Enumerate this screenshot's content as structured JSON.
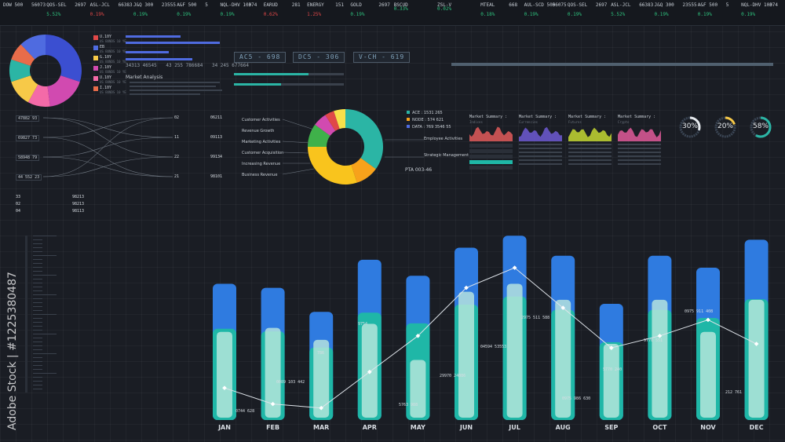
{
  "ticker": [
    {
      "name": "DOW 500",
      "a": "56073",
      "b": "59",
      "value": "",
      "dir": "up"
    },
    {
      "name": "QOS-SEL",
      "a": "2697",
      "b": "42",
      "value": "5.52%",
      "dir": "up"
    },
    {
      "name": "ASL-JCL",
      "a": "66383",
      "b": "369",
      "value": "0.19%",
      "dir": "dn"
    },
    {
      "name": "J&Q 300",
      "a": "23555",
      "b": "63",
      "value": "0.19%",
      "dir": "up"
    },
    {
      "name": "A&F 500",
      "a": "5",
      "b": "439",
      "value": "0.19%",
      "dir": "up"
    },
    {
      "name": "NQL-DHV 100",
      "a": "374",
      "b": "67",
      "value": "0.19%",
      "dir": "up"
    },
    {
      "name": "EARUD",
      "a": "281",
      "b": "9442",
      "value": "0.62%",
      "dir": "dn"
    },
    {
      "name": "ENERGY",
      "a": "151",
      "b": "645485",
      "value": "1.25%",
      "dir": "dn"
    },
    {
      "name": "GOLD",
      "a": "2697",
      "b": "42",
      "value": "0.19%",
      "dir": "up"
    },
    {
      "name": "BSCUD",
      "a": "",
      "b": "",
      "value": "0.33%",
      "dir": "up"
    },
    {
      "name": "ZSL-V",
      "a": "",
      "b": "",
      "value": "0.02%",
      "dir": "up"
    },
    {
      "name": "MTEAL",
      "a": "668",
      "b": "442",
      "value": "0.18%",
      "dir": "up"
    },
    {
      "name": "AUL-SCD 500",
      "a": "56075",
      "b": "59",
      "value": "0.19%",
      "dir": "up"
    },
    {
      "name": "QOS-SEL",
      "a": "2697",
      "b": "42",
      "value": "0.19%",
      "dir": "up"
    },
    {
      "name": "ASL-JCL",
      "a": "66383",
      "b": "369",
      "value": "5.52%",
      "dir": "up"
    },
    {
      "name": "J&Q 300",
      "a": "23555",
      "b": "63",
      "value": "0.19%",
      "dir": "up"
    },
    {
      "name": "A&F 500",
      "a": "5",
      "b": "439",
      "value": "0.19%",
      "dir": "up"
    },
    {
      "name": "NQL-DHV 100",
      "a": "374",
      "b": "67",
      "value": "0.19%",
      "dir": "up"
    }
  ],
  "donut_small": {
    "slices": [
      {
        "value": 30,
        "color": "#3b4fd1"
      },
      {
        "value": 18,
        "color": "#d14ab0"
      },
      {
        "value": 10,
        "color": "#f46aa8"
      },
      {
        "value": 12,
        "color": "#f7c948"
      },
      {
        "value": 10,
        "color": "#2bb5a5"
      },
      {
        "value": 8,
        "color": "#e86c4a"
      },
      {
        "value": 12,
        "color": "#4f6be0"
      }
    ],
    "legend": [
      {
        "label": "U.10Y",
        "sub": "US BONDS 10 YE",
        "color": "#e04848"
      },
      {
        "label": "EB",
        "sub": "US BONDS 10 YE",
        "color": "#4f6be0"
      },
      {
        "label": "G.10Y",
        "sub": "US BONDS 10 YE",
        "color": "#f7c948"
      },
      {
        "label": "J.10Y",
        "sub": "US BONDS 10 YE",
        "color": "#d14ab0"
      },
      {
        "label": "U.10Y",
        "sub": "US BONDS 10 YE",
        "color": "#f46aa8"
      },
      {
        "label": "I.10Y",
        "sub": "US BONDS 10 YE",
        "color": "#e86c4a"
      }
    ]
  },
  "market_analysis": {
    "title": "Market Analysis",
    "stats": [
      "34313 46545",
      "43 255 786684",
      "34 245 677664"
    ]
  },
  "tabs": [
    "AC5 - 698",
    "DC5 - 306",
    "V-CH - 619"
  ],
  "flow_left": [
    "47882 93",
    "69827 73",
    "58948 79",
    "44 552 23"
  ],
  "flow_right": [
    {
      "idx": "02",
      "code": "06211"
    },
    {
      "idx": "11",
      "code": "09113"
    },
    {
      "idx": "22",
      "code": "99134"
    },
    {
      "idx": "21",
      "code": "98101"
    }
  ],
  "stats_left": [
    [
      "33",
      "98213"
    ],
    [
      "02",
      "98213"
    ],
    [
      "04",
      "98113"
    ]
  ],
  "donut_main": {
    "labels_left": [
      "Customer Activities",
      "Revenue Growth",
      "Marketing Activities",
      "Customer Acquisition",
      "Increasing Revenue",
      "Business Revenue"
    ],
    "legend": [
      {
        "label": "ACE : 1531 265",
        "color": "#2bb5a5"
      },
      {
        "label": "NODE : 574 621",
        "color": "#f7a21b"
      },
      {
        "label": "DATA : 769 3546 55",
        "color": "#4f6be0"
      }
    ],
    "labels_right": [
      "Employee Activities",
      "Strategic Management"
    ],
    "footer": "PTA 003-46",
    "slices": [
      {
        "value": 35,
        "color": "#2bb5a5"
      },
      {
        "value": 10,
        "color": "#f7a21b"
      },
      {
        "value": 30,
        "color": "#f9c41d"
      },
      {
        "value": 10,
        "color": "#3fb14a"
      },
      {
        "value": 6,
        "color": "#d14ab0"
      },
      {
        "value": 4,
        "color": "#e04848"
      },
      {
        "value": 5,
        "color": "#f7e04a"
      }
    ]
  },
  "market_summary": [
    {
      "title": "Market Summary :",
      "sub": "Indices",
      "color": "#e25b5b"
    },
    {
      "title": "Market Summary :",
      "sub": "Currencies",
      "color": "#6f5bd3"
    },
    {
      "title": "Market Summary :",
      "sub": "Futures",
      "color": "#c6d832"
    },
    {
      "title": "Market Summary :",
      "sub": "Crypto",
      "color": "#e25b9a"
    }
  ],
  "rings": [
    {
      "label": "30%",
      "value": 30,
      "color": "#e6eaee"
    },
    {
      "label": "20%",
      "value": 20,
      "color": "#f7c948"
    },
    {
      "label": "58%",
      "value": 58,
      "color": "#2bb5a5"
    }
  ],
  "chart_data": {
    "type": "bar",
    "categories": [
      "JAN",
      "FEB",
      "MAR",
      "APR",
      "MAY",
      "JUN",
      "JUL",
      "AUG",
      "SEP",
      "OCT",
      "NOV",
      "DEC"
    ],
    "series": [
      {
        "values": [
          170,
          165,
          135,
          200,
          180,
          215,
          230,
          205,
          145,
          205,
          190,
          225
        ]
      },
      {
        "values": [
          110,
          115,
          100,
          120,
          75,
          160,
          170,
          150,
          95,
          150,
          110,
          150
        ]
      },
      {
        "values": [
          40,
          20,
          15,
          60,
          105,
          165,
          190,
          140,
          90,
          105,
          125,
          95
        ]
      }
    ],
    "ylim": [
      0,
      240
    ],
    "line_labels": [
      "0744 628",
      "0089 103 442",
      "786",
      "9754",
      "5763 988",
      "29970 24086",
      "04594 53553",
      "2975 511 588",
      "0975 986 630",
      "5770 240",
      "9770 551",
      "0975 911 408",
      "212 761"
    ],
    "colors": {
      "bar_top": "#2f7be0",
      "bar_body": "#1fb7a7",
      "inner": "#bde8df",
      "line": "#dfe4ea"
    }
  },
  "watermark": "Adobe Stock | #1225380487"
}
